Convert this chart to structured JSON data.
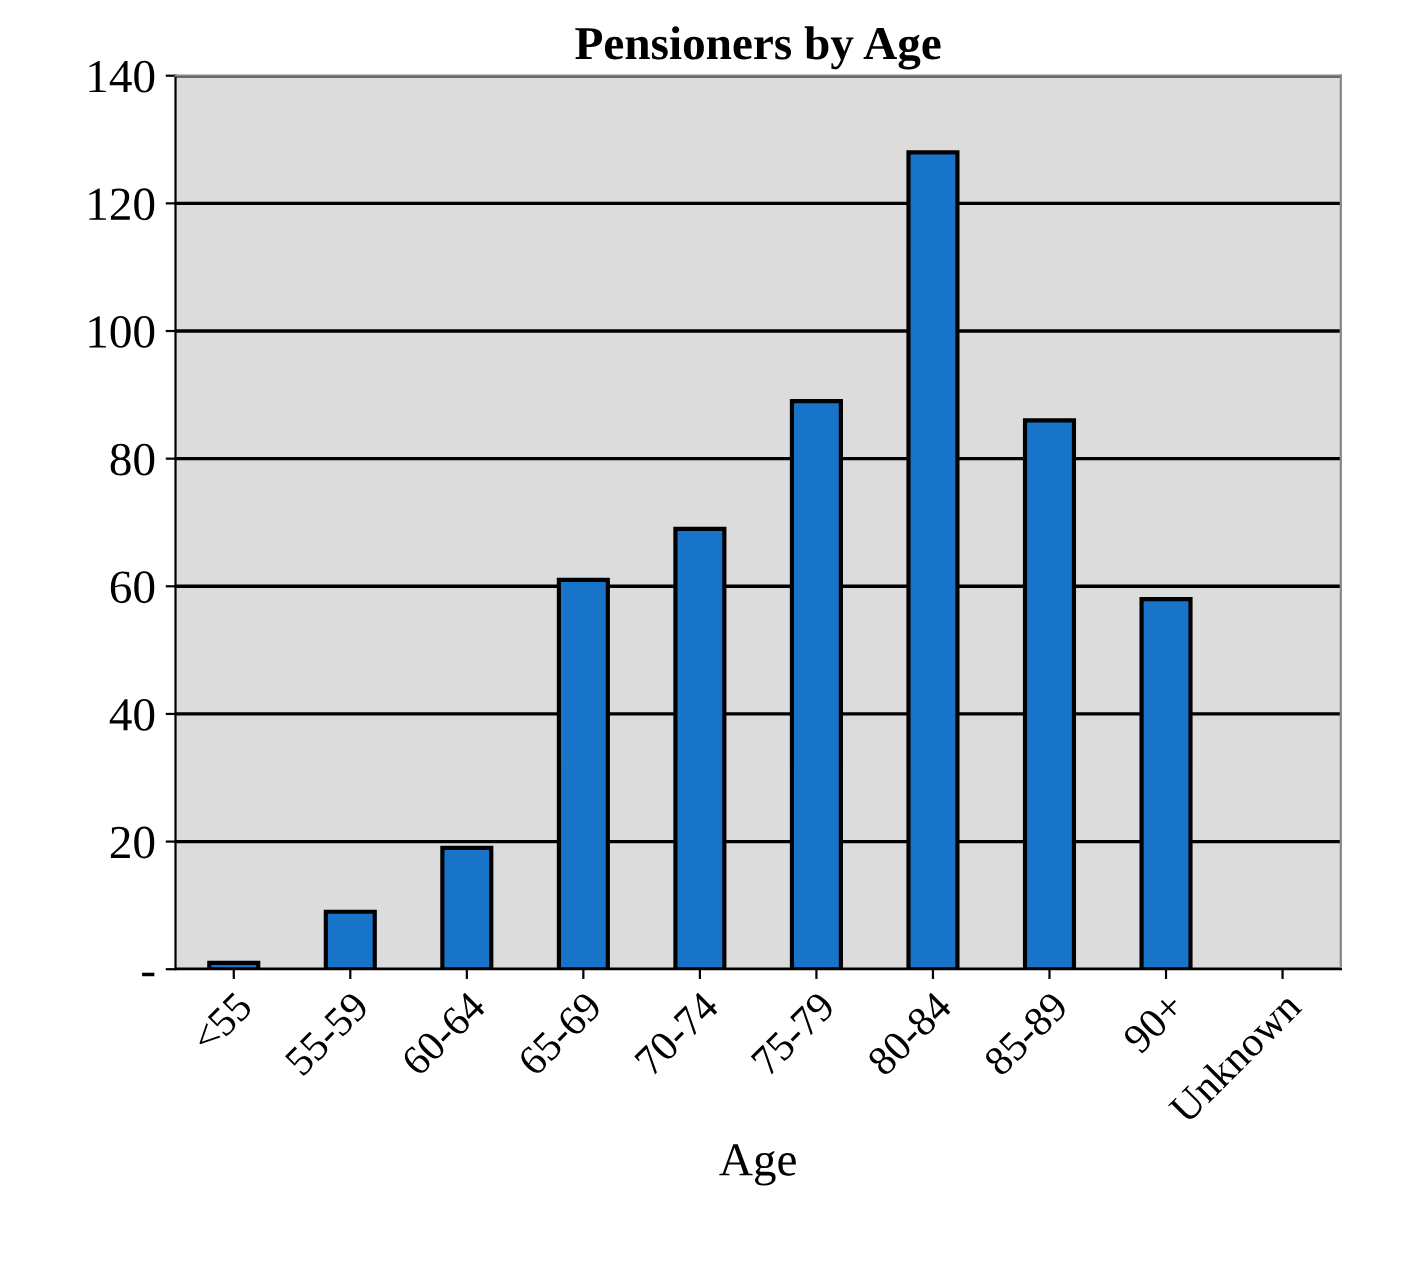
{
  "chart_data": {
    "type": "bar",
    "title": "Pensioners by Age",
    "xlabel": "Age",
    "categories": [
      "<55",
      "55-59",
      "60-64",
      "65-69",
      "70-74",
      "75-79",
      "80-84",
      "85-89",
      "90+",
      "Unknown"
    ],
    "values": [
      1,
      9,
      19,
      61,
      69,
      89,
      128,
      86,
      58,
      null
    ],
    "color": "#1874c8",
    "ylim": [
      0,
      140
    ],
    "yticks": [
      {
        "value": 0,
        "label": "-"
      },
      20,
      40,
      60,
      80,
      100,
      120,
      140
    ],
    "grid": "y"
  }
}
